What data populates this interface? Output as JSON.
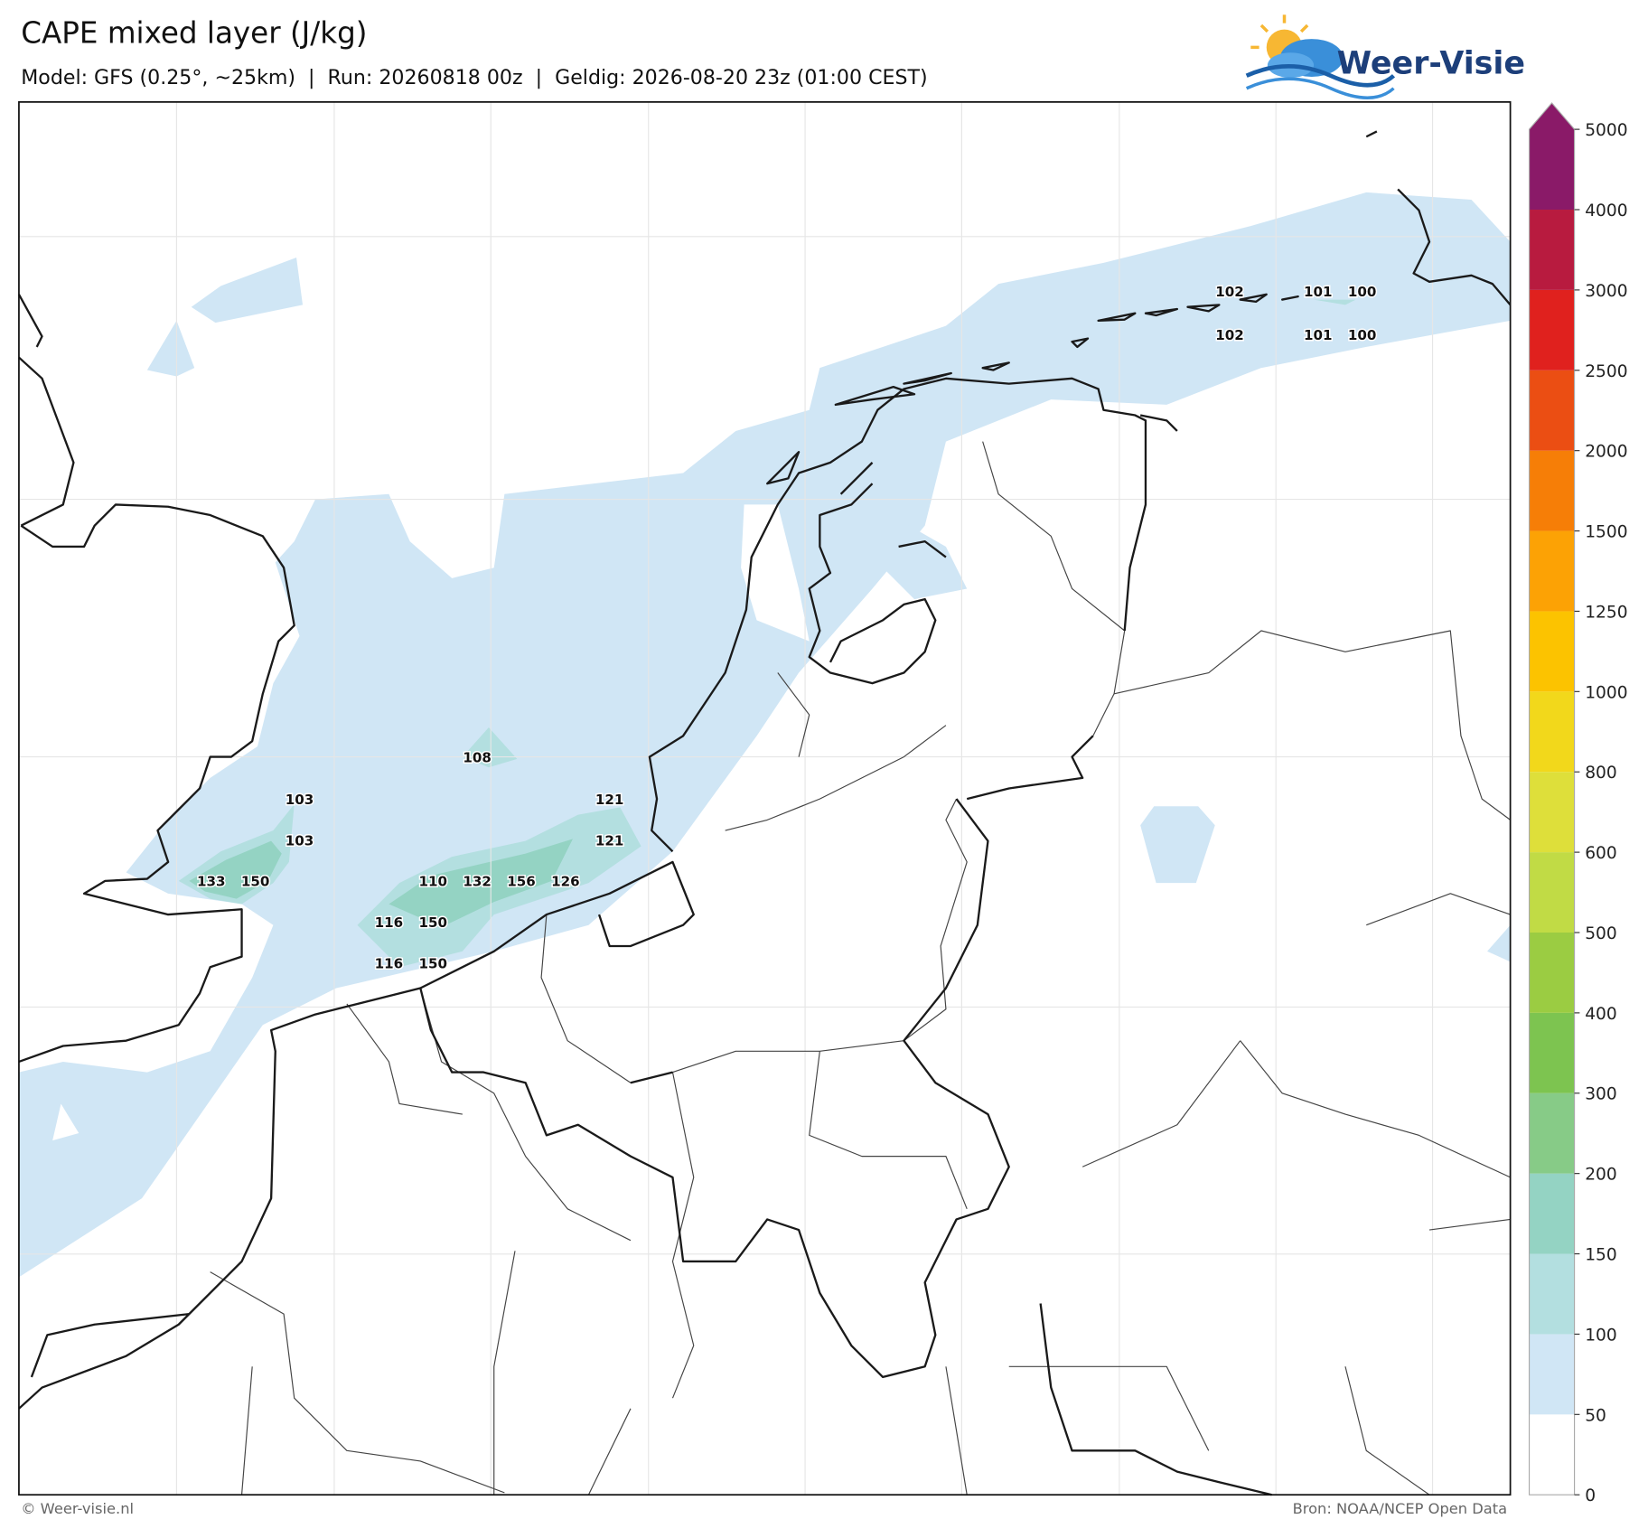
{
  "header": {
    "title": "CAPE mixed layer (J/kg)",
    "subtitle": "Model: GFS (0.25°, ~25km)  |  Run: 20260818 00z  |  Geldig: 2026-08-20 23z (01:00 CEST)",
    "logo": "Weer-Visie"
  },
  "footer": {
    "left": "© Weer-visie.nl",
    "right": "Bron: NOAA/NCEP Open Data"
  },
  "colorbar": {
    "levels": [
      0,
      50,
      100,
      150,
      200,
      300,
      400,
      500,
      600,
      800,
      1000,
      1250,
      1500,
      2000,
      2500,
      3000,
      4000,
      5000
    ],
    "colors": [
      "#ffffff",
      "#d0e6f5",
      "#b3dfe0",
      "#94d3c3",
      "#87cb87",
      "#7dc450",
      "#9bcc42",
      "#c1db45",
      "#dedf3a",
      "#f2d81b",
      "#fcc300",
      "#fca205",
      "#f67e07",
      "#eb4e13",
      "#e0211e",
      "#b81b3f",
      "#8a1a68"
    ]
  },
  "map_labels": [
    102,
    101,
    100,
    102,
    101,
    100,
    108,
    103,
    103,
    121,
    121,
    133,
    150,
    110,
    132,
    156,
    126,
    116,
    150,
    116,
    150
  ]
}
